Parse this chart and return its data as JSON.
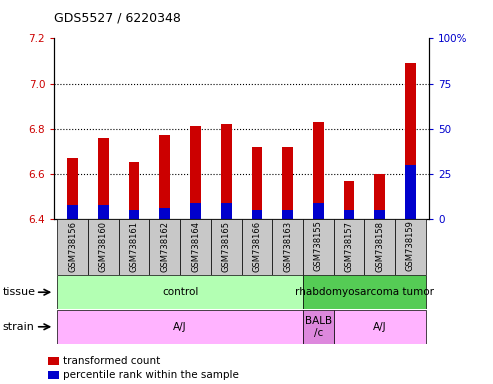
{
  "title": "GDS5527 / 6220348",
  "samples": [
    "GSM738156",
    "GSM738160",
    "GSM738161",
    "GSM738162",
    "GSM738164",
    "GSM738165",
    "GSM738166",
    "GSM738163",
    "GSM738155",
    "GSM738157",
    "GSM738158",
    "GSM738159"
  ],
  "red_values": [
    6.67,
    6.76,
    6.65,
    6.77,
    6.81,
    6.82,
    6.72,
    6.72,
    6.83,
    6.57,
    6.6,
    7.09
  ],
  "blue_values": [
    6.46,
    6.46,
    6.44,
    6.45,
    6.47,
    6.47,
    6.44,
    6.44,
    6.47,
    6.44,
    6.44,
    6.64
  ],
  "ylim_left": [
    6.4,
    7.2
  ],
  "ylim_right": [
    0,
    100
  ],
  "yticks_left": [
    6.4,
    6.6,
    6.8,
    7.0,
    7.2
  ],
  "yticks_right": [
    0,
    25,
    50,
    75,
    100
  ],
  "ytick_right_labels": [
    "0",
    "25",
    "50",
    "75",
    "100%"
  ],
  "base_value": 6.4,
  "bar_width": 0.35,
  "tissue_labels": [
    {
      "text": "control",
      "start": 0,
      "end": 8,
      "color": "#b3ffb3"
    },
    {
      "text": "rhabdomyosarcoma tumor",
      "start": 8,
      "end": 12,
      "color": "#55cc55"
    }
  ],
  "strain_labels": [
    {
      "text": "A/J",
      "start": 0,
      "end": 8,
      "color": "#ffb3ff"
    },
    {
      "text": "BALB\n/c",
      "start": 8,
      "end": 9,
      "color": "#dd88dd"
    },
    {
      "text": "A/J",
      "start": 9,
      "end": 12,
      "color": "#ffb3ff"
    }
  ],
  "legend_items": [
    {
      "color": "#cc0000",
      "label": "transformed count"
    },
    {
      "color": "#0000cc",
      "label": "percentile rank within the sample"
    }
  ],
  "title_color": "black",
  "left_axis_color": "#cc0000",
  "right_axis_color": "#0000cc",
  "bar_color_red": "#cc0000",
  "bar_color_blue": "#0000cc",
  "grid_dotted_ticks": [
    6.6,
    6.8,
    7.0
  ],
  "xticklabel_bg": "#c8c8c8"
}
